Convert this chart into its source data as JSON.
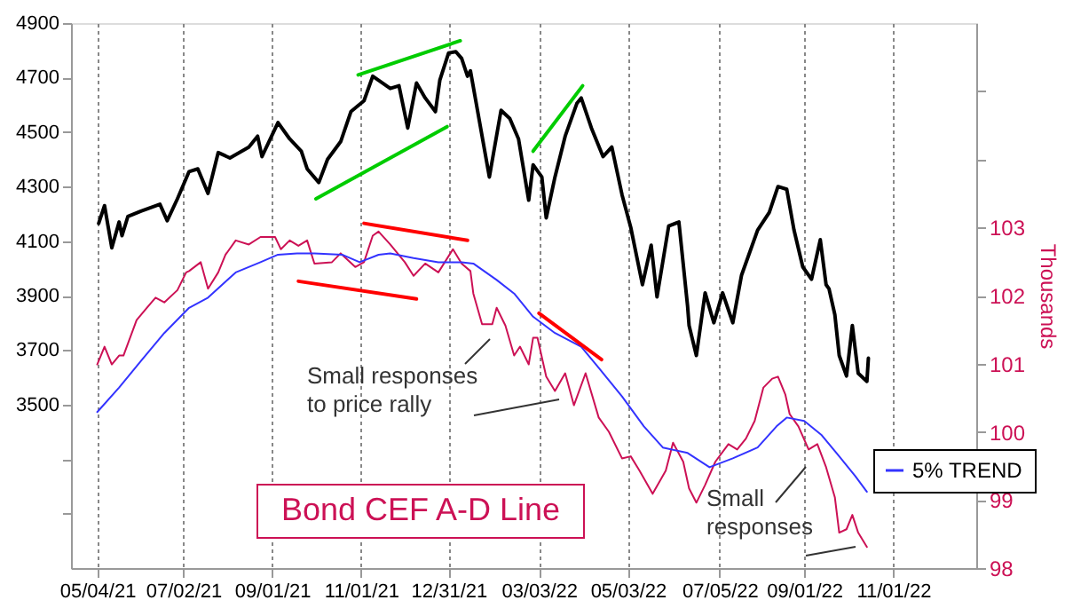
{
  "chart_data": {
    "type": "line",
    "xlim": [
      "2021-04-16",
      "2022-12-28"
    ],
    "xticks": [
      {
        "value": "2021-05-04",
        "label": "05/04/21"
      },
      {
        "value": "2021-07-02",
        "label": "07/02/21"
      },
      {
        "value": "2021-09-01",
        "label": "09/01/21"
      },
      {
        "value": "2021-11-01",
        "label": "11/01/21"
      },
      {
        "value": "2021-12-31",
        "label": "12/31/21"
      },
      {
        "value": "2022-03-03",
        "label": "03/03/22"
      },
      {
        "value": "2022-05-03",
        "label": "05/03/22"
      },
      {
        "value": "2022-07-05",
        "label": "07/05/22"
      },
      {
        "value": "2022-09-01",
        "label": "09/01/22"
      },
      {
        "value": "2022-11-01",
        "label": "11/01/22"
      }
    ],
    "ylim": [
      2900,
      4900
    ],
    "yticks": [
      {
        "value": 3100,
        "label": null
      },
      {
        "value": 3300,
        "label": null
      },
      3500,
      3700,
      3900,
      4100,
      4300,
      4500,
      4700,
      4900
    ],
    "y2lim": [
      98,
      106
    ],
    "y2ticks": [
      98,
      99,
      100,
      101,
      102,
      103,
      {
        "value": 104,
        "label": null
      },
      {
        "value": 105,
        "label": null
      }
    ],
    "y2label": "Thousands",
    "grid": "x",
    "legend": "right",
    "series": [
      {
        "color": "#000000",
        "x": [
          "2021-05-05",
          "2021-05-09",
          "2021-05-14",
          "2021-05-19",
          "2021-05-21",
          "2021-05-25",
          "2021-06-03",
          "2021-06-16",
          "2021-06-21",
          "2021-06-28",
          "2021-07-06",
          "2021-07-12",
          "2021-07-19",
          "2021-07-26",
          "2021-08-03",
          "2021-08-16",
          "2021-08-22",
          "2021-08-25",
          "2021-09-05",
          "2021-09-13",
          "2021-09-21",
          "2021-09-25",
          "2021-10-03",
          "2021-10-09",
          "2021-10-18",
          "2021-10-25",
          "2021-11-03",
          "2021-11-09",
          "2021-11-21",
          "2021-11-27",
          "2021-12-03",
          "2021-12-09",
          "2021-12-15",
          "2021-12-22",
          "2021-12-25",
          "2021-12-31",
          "2022-01-05",
          "2022-01-09",
          "2022-01-13",
          "2022-01-15",
          "2022-01-23",
          "2022-01-28",
          "2022-02-05",
          "2022-02-11",
          "2022-02-17",
          "2022-02-24",
          "2022-02-27",
          "2022-03-05",
          "2022-03-08",
          "2022-03-14",
          "2022-03-21",
          "2022-03-29",
          "2022-04-01",
          "2022-04-08",
          "2022-04-16",
          "2022-04-22",
          "2022-04-29",
          "2022-05-05",
          "2022-05-13",
          "2022-05-19",
          "2022-05-23",
          "2022-05-31",
          "2022-06-07",
          "2022-06-13",
          "2022-06-14",
          "2022-06-19",
          "2022-06-25",
          "2022-07-01",
          "2022-07-07",
          "2022-07-14",
          "2022-07-20",
          "2022-07-31",
          "2022-08-08",
          "2022-08-14",
          "2022-08-20",
          "2022-08-25",
          "2022-08-31",
          "2022-09-06",
          "2022-09-12",
          "2022-09-16",
          "2022-09-18",
          "2022-09-22",
          "2022-09-25",
          "2022-09-30",
          "2022-10-04",
          "2022-10-08",
          "2022-10-14",
          "2022-10-15"
        ],
        "values": [
          4165,
          4230,
          4075,
          4170,
          4120,
          4190,
          4210,
          4235,
          4175,
          4255,
          4355,
          4365,
          4275,
          4425,
          4405,
          4445,
          4485,
          4410,
          4535,
          4475,
          4430,
          4365,
          4315,
          4400,
          4465,
          4575,
          4615,
          4705,
          4660,
          4670,
          4515,
          4680,
          4625,
          4575,
          4690,
          4790,
          4795,
          4770,
          4705,
          4725,
          4485,
          4335,
          4580,
          4550,
          4475,
          4250,
          4380,
          4335,
          4185,
          4335,
          4485,
          4605,
          4625,
          4515,
          4410,
          4445,
          4270,
          4150,
          3940,
          4085,
          3895,
          4155,
          4170,
          3860,
          3790,
          3680,
          3910,
          3800,
          3910,
          3800,
          3975,
          4140,
          4205,
          4300,
          4290,
          4140,
          4005,
          3960,
          4105,
          3940,
          3925,
          3830,
          3680,
          3605,
          3790,
          3615,
          3585,
          3670
        ]
      },
      {
        "name": "Bond CEF A-D Line",
        "color": "#cc1155",
        "axis": "y2",
        "x": [
          "2021-05-04",
          "2021-05-09",
          "2021-05-14",
          "2021-05-19",
          "2021-05-22",
          "2021-05-31",
          "2021-06-07",
          "2021-06-13",
          "2021-06-19",
          "2021-06-28",
          "2021-07-04",
          "2021-07-06",
          "2021-07-14",
          "2021-07-19",
          "2021-07-26",
          "2021-07-31",
          "2021-08-07",
          "2021-08-16",
          "2021-08-24",
          "2021-09-03",
          "2021-09-07",
          "2021-09-13",
          "2021-09-19",
          "2021-09-25",
          "2021-09-30",
          "2021-10-12",
          "2021-10-18",
          "2021-10-28",
          "2021-11-03",
          "2021-11-09",
          "2021-11-13",
          "2021-11-21",
          "2021-12-01",
          "2021-12-07",
          "2021-12-15",
          "2021-12-24",
          "2022-01-03",
          "2022-01-09",
          "2022-01-15",
          "2022-01-17",
          "2022-01-23",
          "2022-01-30",
          "2022-02-02",
          "2022-02-08",
          "2022-02-14",
          "2022-02-18",
          "2022-02-24",
          "2022-02-27",
          "2022-03-02",
          "2022-03-08",
          "2022-03-14",
          "2022-03-21",
          "2022-03-27",
          "2022-04-04",
          "2022-04-13",
          "2022-04-20",
          "2022-04-29",
          "2022-05-05",
          "2022-05-11",
          "2022-05-20",
          "2022-05-29",
          "2022-06-03",
          "2022-06-10",
          "2022-06-14",
          "2022-06-19",
          "2022-06-25",
          "2022-07-02",
          "2022-07-11",
          "2022-07-17",
          "2022-07-23",
          "2022-07-29",
          "2022-08-04",
          "2022-08-10",
          "2022-08-14",
          "2022-08-19",
          "2022-08-22",
          "2022-08-28",
          "2022-09-04",
          "2022-09-10",
          "2022-09-16",
          "2022-09-22",
          "2022-09-25",
          "2022-09-30",
          "2022-10-04",
          "2022-10-08",
          "2022-10-14"
        ],
        "values": [
          100.99,
          101.25,
          100.99,
          101.12,
          101.12,
          101.64,
          101.82,
          101.97,
          101.9,
          102.08,
          102.34,
          102.36,
          102.49,
          102.1,
          102.34,
          102.6,
          102.81,
          102.75,
          102.86,
          102.86,
          102.68,
          102.81,
          102.73,
          102.81,
          102.47,
          102.49,
          102.62,
          102.42,
          102.49,
          102.88,
          102.94,
          102.75,
          102.49,
          102.29,
          102.47,
          102.34,
          102.68,
          102.47,
          102.36,
          102.03,
          101.58,
          101.58,
          101.82,
          101.56,
          101.12,
          101.25,
          100.99,
          101.38,
          101.38,
          100.81,
          100.6,
          100.86,
          100.39,
          100.86,
          100.21,
          100.0,
          99.61,
          99.64,
          99.43,
          99.09,
          99.43,
          99.84,
          99.56,
          99.17,
          98.96,
          99.22,
          99.56,
          99.82,
          99.74,
          99.9,
          100.16,
          100.65,
          100.78,
          100.81,
          100.55,
          100.26,
          100.08,
          99.74,
          99.82,
          99.48,
          99.04,
          98.52,
          98.57,
          98.78,
          98.52,
          98.31
        ]
      },
      {
        "name": "5% TREND",
        "color": "#3333ff",
        "axis": "y2",
        "x": [
          "2021-05-04",
          "2021-05-19",
          "2021-06-03",
          "2021-06-19",
          "2021-07-06",
          "2021-07-19",
          "2021-08-07",
          "2021-08-24",
          "2021-09-05",
          "2021-09-18",
          "2021-09-30",
          "2021-10-19",
          "2021-10-31",
          "2021-11-13",
          "2021-11-21",
          "2021-12-07",
          "2021-12-24",
          "2022-01-09",
          "2022-01-17",
          "2022-02-02",
          "2022-02-14",
          "2022-02-27",
          "2022-03-14",
          "2022-04-01",
          "2022-04-13",
          "2022-04-29",
          "2022-05-14",
          "2022-05-27",
          "2022-06-13",
          "2022-06-28",
          "2022-07-14",
          "2022-07-31",
          "2022-08-13",
          "2022-08-20",
          "2022-09-01",
          "2022-09-13",
          "2022-09-25",
          "2022-10-06",
          "2022-10-14"
        ],
        "values": [
          100.29,
          100.65,
          101.04,
          101.45,
          101.82,
          101.97,
          102.34,
          102.49,
          102.6,
          102.62,
          102.62,
          102.6,
          102.49,
          102.6,
          102.62,
          102.55,
          102.49,
          102.49,
          102.47,
          102.23,
          102.03,
          101.69,
          101.45,
          101.25,
          100.94,
          100.52,
          100.08,
          99.77,
          99.69,
          99.48,
          99.61,
          99.77,
          100.08,
          100.21,
          100.16,
          99.95,
          99.64,
          99.35,
          99.12
        ]
      },
      {
        "type": "line",
        "color": "#00cc00",
        "x": [
          "2021-10-30",
          "2022-01-08"
        ],
        "values": [
          4710,
          4835
        ]
      },
      {
        "type": "line",
        "color": "#00cc00",
        "x": [
          "2021-10-01",
          "2021-12-30"
        ],
        "values": [
          4255,
          4520
        ]
      },
      {
        "type": "line",
        "color": "#00cc00",
        "x": [
          "2022-02-27",
          "2022-04-02"
        ],
        "values": [
          4430,
          4670
        ]
      },
      {
        "type": "line",
        "color": "#ff0000",
        "axis": "y2",
        "x": [
          "2021-11-03",
          "2022-01-13"
        ],
        "values": [
          103.06,
          102.81
        ]
      },
      {
        "type": "line",
        "color": "#ff0000",
        "axis": "y2",
        "x": [
          "2021-09-19",
          "2021-12-09"
        ],
        "values": [
          102.21,
          101.95
        ]
      },
      {
        "type": "line",
        "color": "#ff0000",
        "axis": "y2",
        "x": [
          "2022-03-03",
          "2022-04-15"
        ],
        "values": [
          101.74,
          101.06
        ]
      }
    ],
    "annotations": [
      "Small responses\nto price rally",
      "Small\nresponses"
    ]
  }
}
